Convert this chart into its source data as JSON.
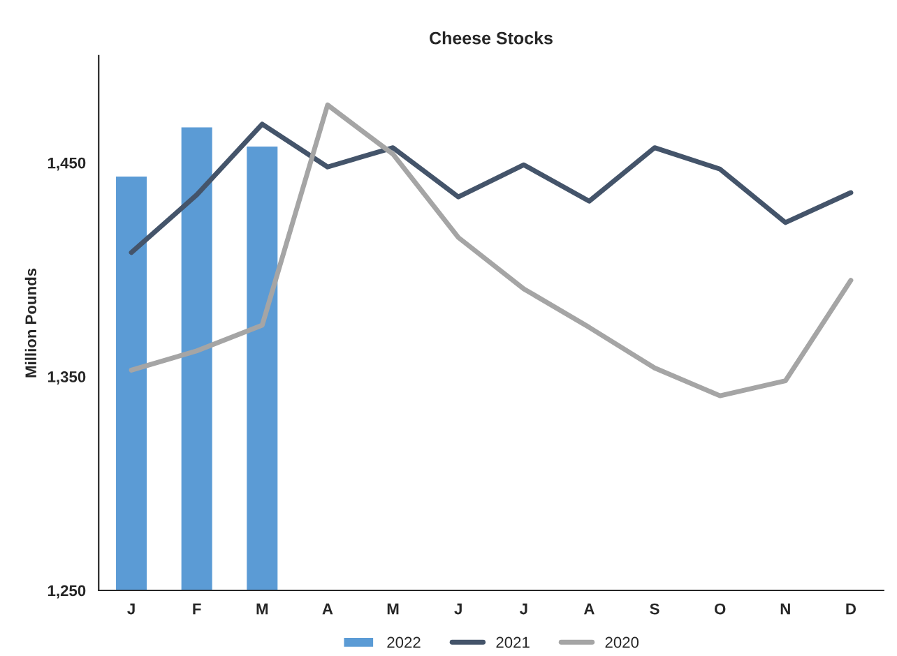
{
  "chart_data": {
    "type": "line",
    "title": "Cheese Stocks",
    "ylabel": "Million Pounds",
    "categories": [
      "J",
      "F",
      "M",
      "A",
      "M",
      "J",
      "J",
      "A",
      "S",
      "O",
      "N",
      "D"
    ],
    "ylim": [
      1250,
      1500
    ],
    "yticks": [
      {
        "value": 1250,
        "label": "1,250"
      },
      {
        "value": 1350,
        "label": "1,350"
      },
      {
        "value": 1450,
        "label": "1,450"
      }
    ],
    "grid": false,
    "legend": "bottom",
    "series": [
      {
        "name": "2022",
        "type": "bar",
        "color": "#5b9bd5",
        "values": [
          1444,
          1467,
          1458,
          null,
          null,
          null,
          null,
          null,
          null,
          null,
          null,
          null
        ]
      },
      {
        "name": "2021",
        "color": "#44546a",
        "values": [
          1408,
          1435,
          1468,
          1448,
          1457,
          1434,
          1449,
          1432,
          1457,
          1447,
          1422,
          1436
        ]
      },
      {
        "name": "2020",
        "color": "#a5a5a5",
        "values": [
          1353,
          1362,
          1374,
          1477,
          1454,
          1415,
          1391,
          1373,
          1354,
          1341,
          1348,
          1395
        ]
      }
    ]
  }
}
